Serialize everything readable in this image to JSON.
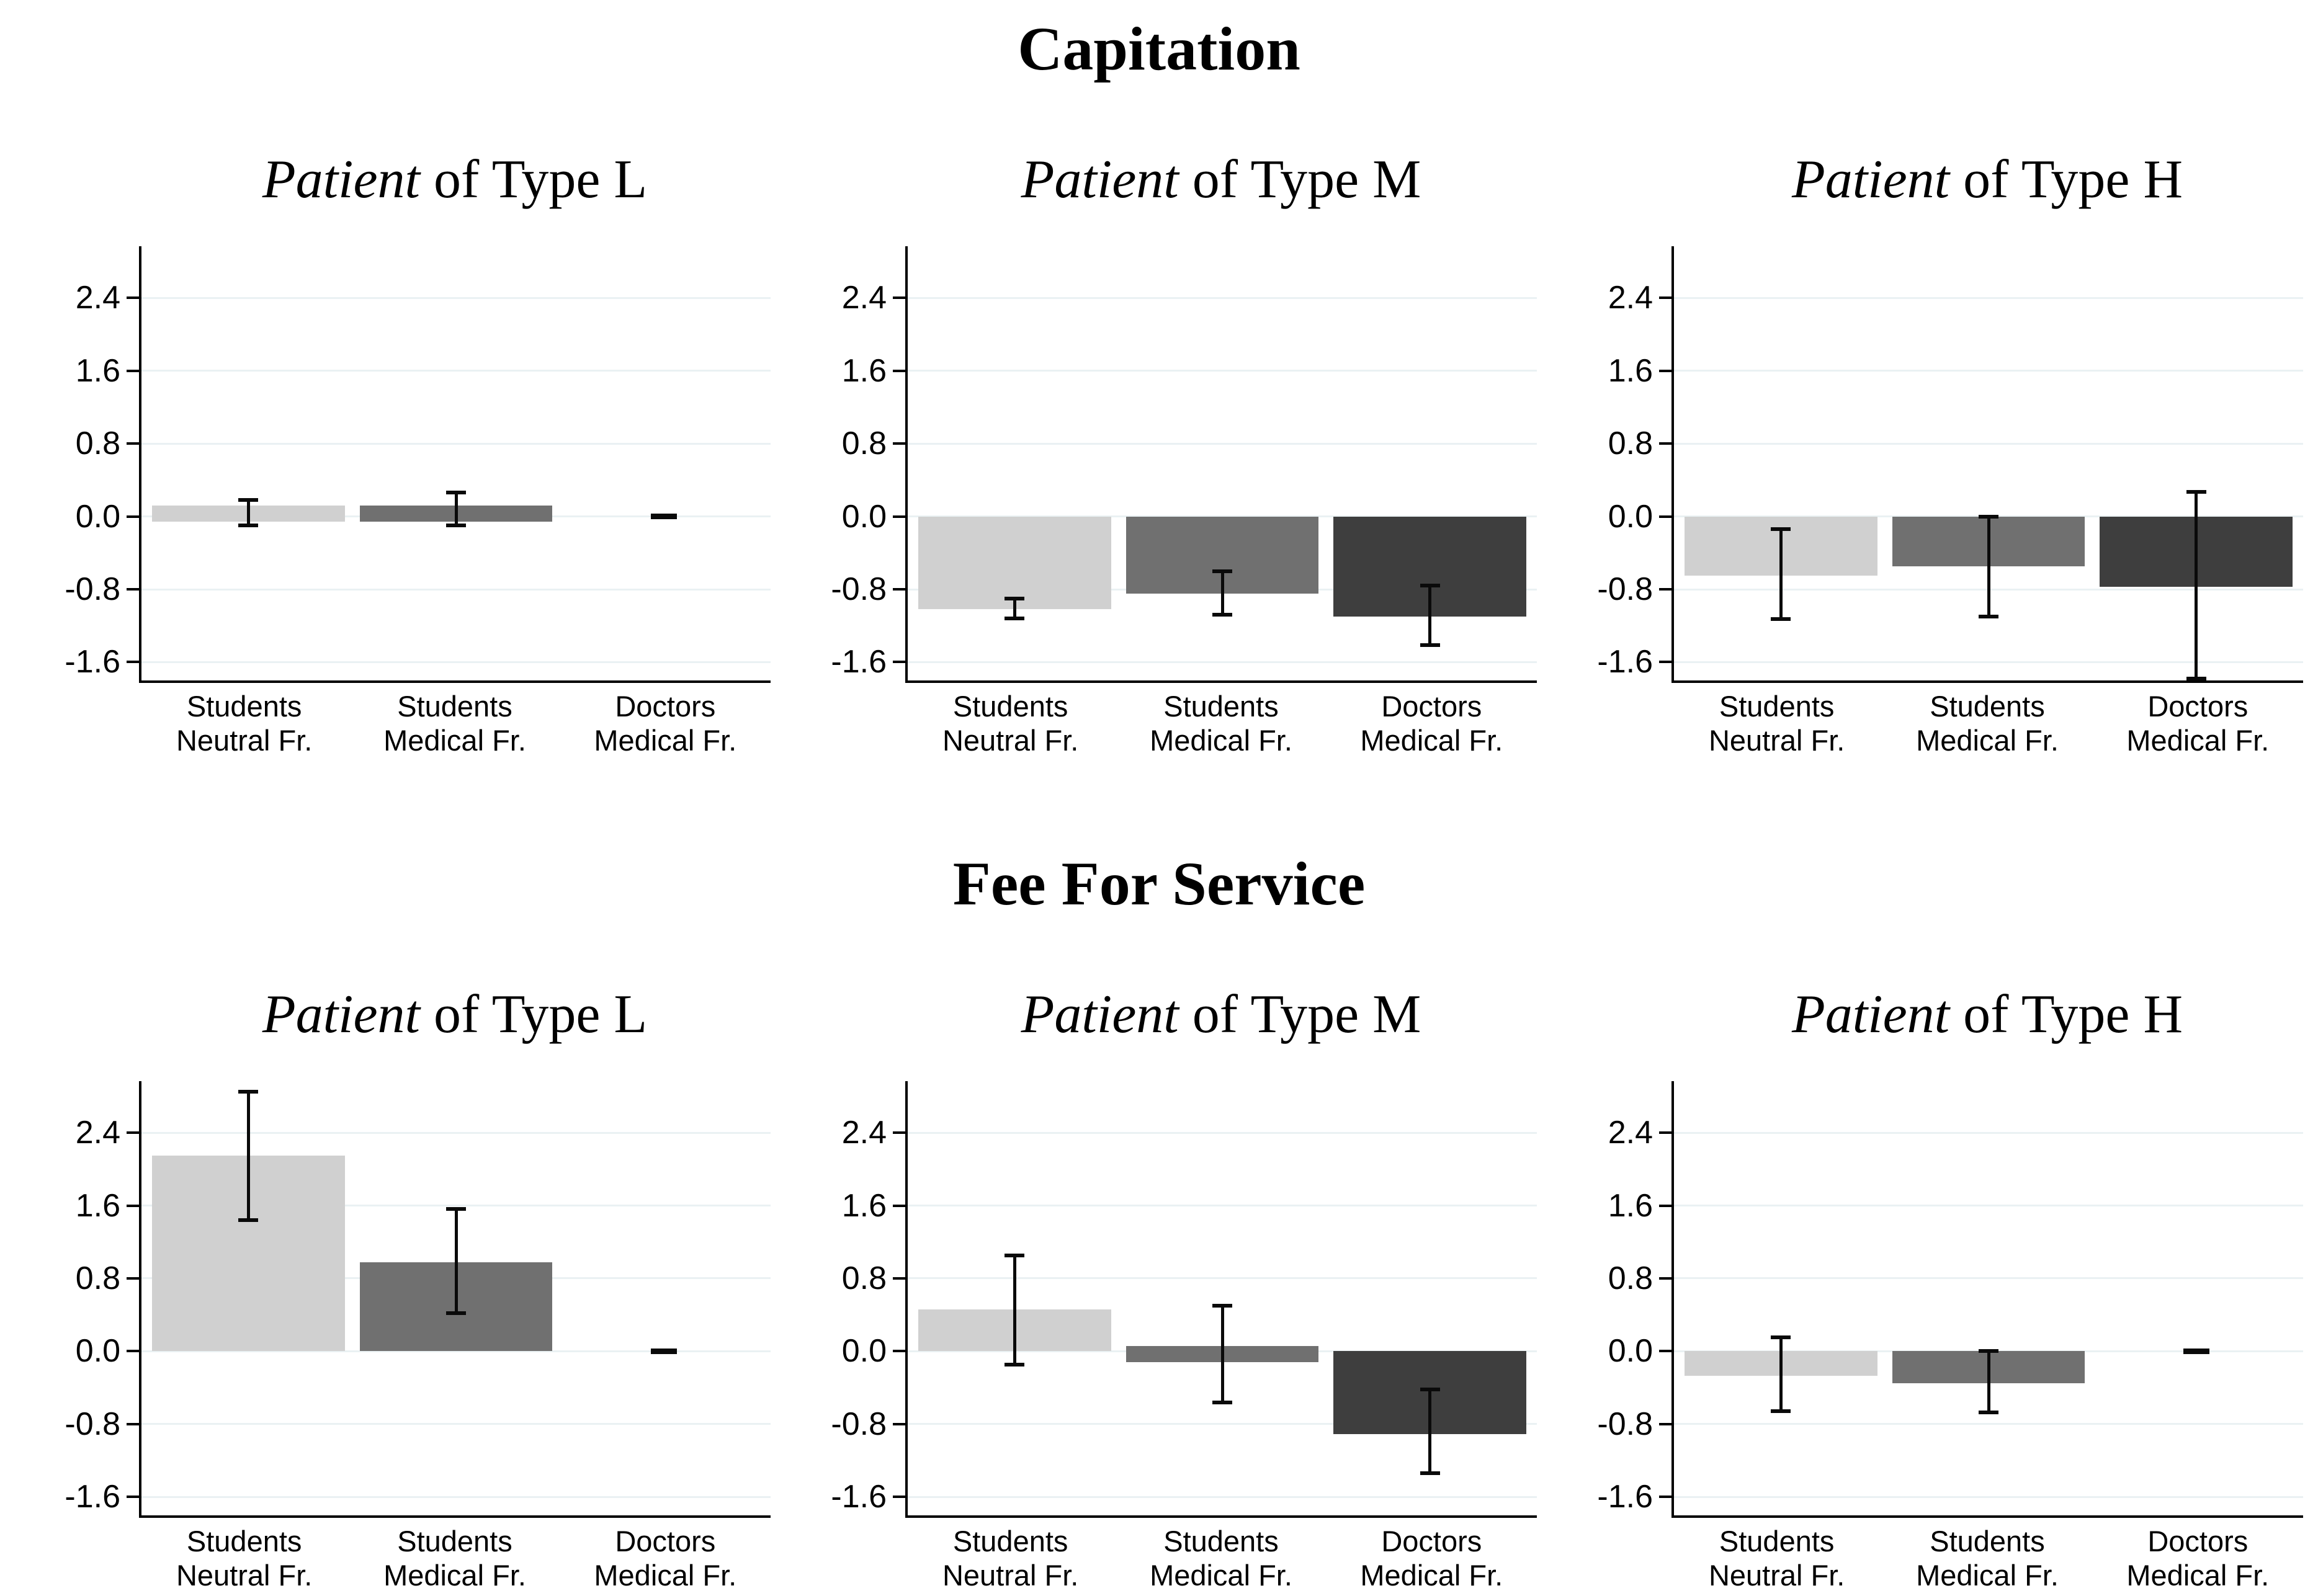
{
  "colors": {
    "bar_fills": [
      "#d0d0d0",
      "#707070",
      "#3e3e3e"
    ],
    "gridline": "#eaf1f3",
    "axis": "#000000",
    "error_bar": "#0a0a0a",
    "background": "#ffffff"
  },
  "axis": {
    "ymin": -1.8,
    "ymax": 2.97,
    "ticks": [
      "2.4",
      "1.6",
      "0.8",
      "0.0",
      "-0.8",
      "-1.6"
    ],
    "grid": true
  },
  "bar_names": [
    "bar-students-neutral-fr",
    "bar-students-medical-fr",
    "bar-doctors-medical-fr"
  ],
  "categories": [
    {
      "line1": "Students",
      "line2": "Neutral Fr."
    },
    {
      "line1": "Students",
      "line2": "Medical Fr."
    },
    {
      "line1": "Doctors",
      "line2": "Medical Fr."
    }
  ],
  "chart_data": [
    {
      "type": "bar",
      "panel_title": "Capitation",
      "subplots": [
        {
          "title_em": "Patient",
          "title_rest": " of Type L",
          "bars": [
            {
              "label": "Students Neutral Fr.",
              "value": 0.04,
              "ci_low": -0.1,
              "ci_high": 0.18
            },
            {
              "label": "Students Medical Fr.",
              "value": 0.09,
              "ci_low": -0.1,
              "ci_high": 0.26
            },
            {
              "label": "Doctors Medical Fr.",
              "value": 0.0,
              "dash": true
            }
          ]
        },
        {
          "title_em": "Patient",
          "title_rest": " of Type M",
          "bars": [
            {
              "label": "Students Neutral Fr.",
              "value": -1.02,
              "ci_low": -1.12,
              "ci_high": -0.9
            },
            {
              "label": "Students Medical Fr.",
              "value": -0.85,
              "ci_low": -1.08,
              "ci_high": -0.6
            },
            {
              "label": "Doctors Medical Fr.",
              "value": -1.1,
              "ci_low": -1.41,
              "ci_high": -0.76
            }
          ]
        },
        {
          "title_em": "Patient",
          "title_rest": " of Type H",
          "bars": [
            {
              "label": "Students Neutral Fr.",
              "value": -0.65,
              "ci_low": -1.13,
              "ci_high": -0.14
            },
            {
              "label": "Students Medical Fr.",
              "value": -0.55,
              "ci_low": -1.1,
              "ci_high": 0.0
            },
            {
              "label": "Doctors Medical Fr.",
              "value": -0.77,
              "ci_low": -1.78,
              "ci_high": 0.27
            }
          ]
        }
      ]
    },
    {
      "type": "bar",
      "panel_title": "Fee For Service",
      "subplots": [
        {
          "title_em": "Patient",
          "title_rest": " of Type L",
          "bars": [
            {
              "label": "Students Neutral Fr.",
              "value": 2.15,
              "ci_low": 1.44,
              "ci_high": 2.85
            },
            {
              "label": "Students Medical Fr.",
              "value": 0.98,
              "ci_low": 0.42,
              "ci_high": 1.56
            },
            {
              "label": "Doctors Medical Fr.",
              "value": 0.0,
              "dash": true
            }
          ]
        },
        {
          "title_em": "Patient",
          "title_rest": " of Type M",
          "bars": [
            {
              "label": "Students Neutral Fr.",
              "value": 0.46,
              "ci_low": -0.15,
              "ci_high": 1.05
            },
            {
              "label": "Students Medical Fr.",
              "value": -0.05,
              "ci_low": -0.56,
              "ci_high": 0.5
            },
            {
              "label": "Doctors Medical Fr.",
              "value": -0.91,
              "ci_low": -1.34,
              "ci_high": -0.42
            }
          ]
        },
        {
          "title_em": "Patient",
          "title_rest": " of Type H",
          "bars": [
            {
              "label": "Students Neutral Fr.",
              "value": -0.27,
              "ci_low": -0.66,
              "ci_high": 0.15
            },
            {
              "label": "Students Medical Fr.",
              "value": -0.35,
              "ci_low": -0.67,
              "ci_high": 0.0
            },
            {
              "label": "Doctors Medical Fr.",
              "value": 0.0,
              "dash": true
            }
          ]
        }
      ]
    }
  ]
}
